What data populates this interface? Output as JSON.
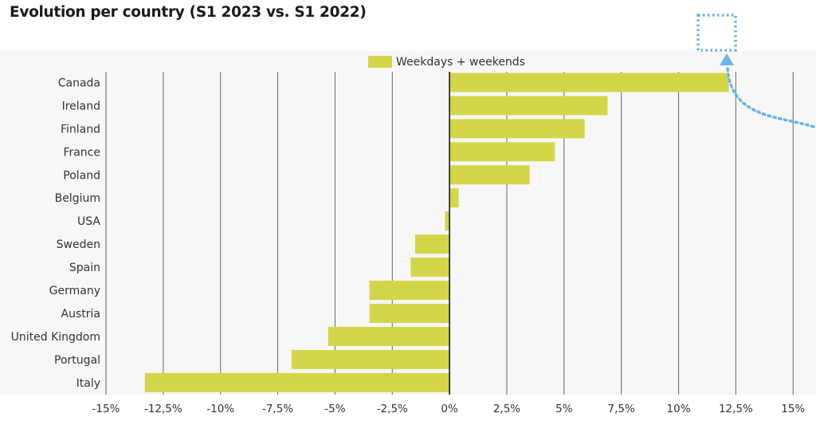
{
  "chart_data": {
    "type": "bar",
    "orientation": "horizontal",
    "title": "Evolution per country (S1 2023 vs. S1 2022)",
    "categories": [
      "Canada",
      "Ireland",
      "Finland",
      "France",
      "Poland",
      "Belgium",
      "USA",
      "Sweden",
      "Spain",
      "Germany",
      "Austria",
      "United Kingdom",
      "Portugal",
      "Italy"
    ],
    "series": [
      {
        "name": "Weekdays + weekends",
        "color": "#d4d64a",
        "values": [
          12.2,
          6.9,
          5.9,
          4.6,
          3.5,
          0.4,
          -0.2,
          -1.5,
          -1.7,
          -3.5,
          -3.5,
          -5.3,
          -6.9,
          -13.3
        ]
      }
    ],
    "xlim": [
      -15,
      16
    ],
    "xticks": [
      -15,
      -12.5,
      -10,
      -7.5,
      -5,
      -2.5,
      0,
      2.5,
      5,
      7.5,
      10,
      12.5,
      15
    ],
    "xtick_labels": [
      "-15%",
      "-12,5%",
      "-10%",
      "-7,5%",
      "-5%",
      "-2,5%",
      "0%",
      "2,5%",
      "5%",
      "7,5%",
      "10%",
      "12,5%",
      "15%"
    ],
    "xlabel": "",
    "ylabel": "",
    "grid": true,
    "legend_position": "top-center",
    "colors": {
      "bar": "#d4d64a",
      "gridline": "#666666",
      "annotation": "#6ab4e8",
      "plot_background": "#f7f7f7"
    }
  }
}
